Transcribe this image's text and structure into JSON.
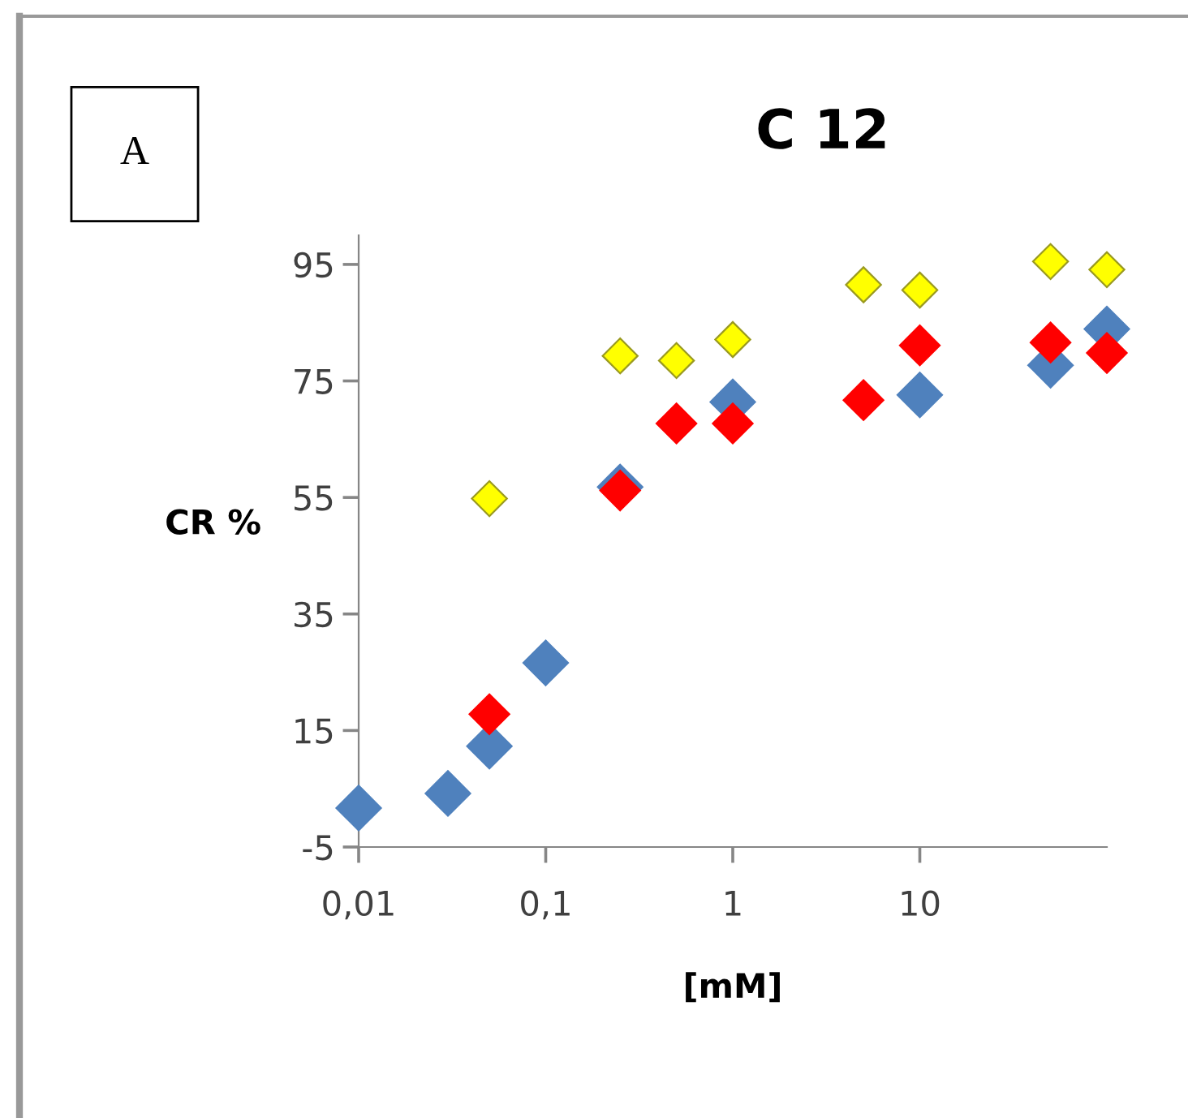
{
  "chart_data": {
    "type": "scatter",
    "title": "C 12",
    "xlabel": "[mM]",
    "ylabel": "CR %",
    "annotations": [
      "A"
    ],
    "log": "x",
    "xlim": [
      0.01,
      100
    ],
    "xticks": [
      {
        "value": 0.01,
        "label": "0,01"
      },
      {
        "value": 0.1,
        "label": "0,1"
      },
      {
        "value": 1,
        "label": "1"
      },
      {
        "value": 10,
        "label": "10"
      }
    ],
    "ylim": [
      -5,
      100
    ],
    "yticks": [
      -5,
      15,
      35,
      55,
      75,
      95
    ],
    "grid": false,
    "legend": false,
    "marker": "diamond",
    "series": [
      {
        "color": "#4f81bd",
        "x": [
          0.01,
          0.03,
          0.05,
          0.1,
          0.25,
          1,
          10,
          50,
          100
        ],
        "values": [
          1.7,
          4.2,
          12.3,
          26.6,
          56.8,
          71.4,
          72.6,
          77.7,
          83.9
        ]
      },
      {
        "color": "#ff0000",
        "x": [
          0.05,
          0.25,
          0.5,
          1,
          5,
          10,
          50,
          100
        ],
        "values": [
          17.8,
          56.2,
          67.7,
          67.7,
          71.7,
          81.1,
          81.6,
          79.8
        ]
      },
      {
        "color": "#ffff00",
        "x": [
          0.05,
          0.25,
          0.5,
          1,
          5,
          10,
          50,
          100
        ],
        "values": [
          54.8,
          79.3,
          78.5,
          82.1,
          91.5,
          90.6,
          95.5,
          94.1
        ]
      }
    ]
  }
}
